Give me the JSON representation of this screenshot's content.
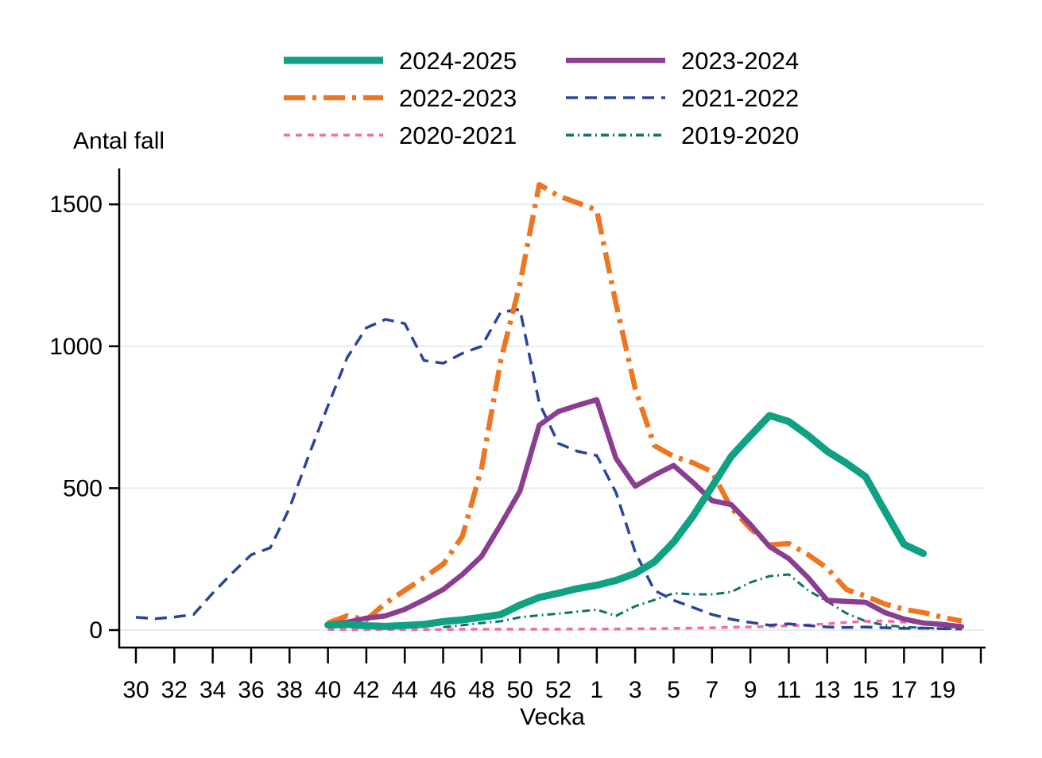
{
  "chart_data": {
    "type": "line",
    "ylabel_title": "Antal fall",
    "xlabel": "Vecka",
    "ylim": [
      0,
      1600
    ],
    "yticks": [
      0,
      500,
      1000,
      1500
    ],
    "grid": "horizontal-light",
    "legend_position": "top-center-two-columns",
    "colors": {
      "axis": "#000000",
      "text": "#000000",
      "grid": "#e4ecf2",
      "background": "#ffffff"
    },
    "weeks": [
      "30",
      "31",
      "32",
      "33",
      "34",
      "35",
      "36",
      "37",
      "38",
      "39",
      "40",
      "41",
      "42",
      "43",
      "44",
      "45",
      "46",
      "47",
      "48",
      "49",
      "50",
      "51",
      "52",
      "53",
      "1",
      "2",
      "3",
      "4",
      "5",
      "6",
      "7",
      "8",
      "9",
      "10",
      "11",
      "12",
      "13",
      "14",
      "15",
      "16",
      "17",
      "18",
      "19",
      "20"
    ],
    "x_tick_labels": [
      "30",
      "32",
      "34",
      "36",
      "38",
      "40",
      "42",
      "44",
      "46",
      "48",
      "50",
      "52",
      "1",
      "3",
      "5",
      "7",
      "9",
      "11",
      "13",
      "15",
      "17",
      "19"
    ],
    "series": [
      {
        "name": "2024-2025",
        "color": "#0ea182",
        "style": "solid",
        "width": 9,
        "values": [
          null,
          null,
          null,
          null,
          null,
          null,
          null,
          null,
          null,
          null,
          18,
          20,
          15,
          13,
          16,
          20,
          30,
          36,
          45,
          55,
          88,
          115,
          130,
          146,
          158,
          175,
          200,
          240,
          310,
          400,
          505,
          612,
          685,
          756,
          735,
          686,
          630,
          588,
          540,
          420,
          302,
          270,
          null,
          null
        ]
      },
      {
        "name": "2023-2024",
        "color": "#8a3e90",
        "style": "solid",
        "width": 6.5,
        "values": [
          null,
          null,
          null,
          null,
          null,
          null,
          null,
          null,
          null,
          null,
          20,
          28,
          42,
          50,
          73,
          106,
          143,
          196,
          260,
          372,
          490,
          722,
          770,
          792,
          812,
          605,
          507,
          546,
          580,
          521,
          456,
          442,
          372,
          294,
          252,
          185,
          105,
          101,
          98,
          62,
          39,
          25,
          20,
          12
        ]
      },
      {
        "name": "2022-2023",
        "color": "#ee7622",
        "style": "dash-dot",
        "width": 6.5,
        "values": [
          null,
          null,
          null,
          null,
          null,
          null,
          null,
          null,
          null,
          null,
          25,
          50,
          36,
          95,
          140,
          185,
          232,
          330,
          570,
          950,
          1220,
          1570,
          1530,
          1505,
          1480,
          1150,
          850,
          650,
          612,
          590,
          558,
          430,
          358,
          300,
          305,
          266,
          218,
          143,
          120,
          92,
          73,
          62,
          45,
          32
        ]
      },
      {
        "name": "2021-2022",
        "color": "#2a4499",
        "style": "dashed",
        "width": 3.5,
        "values": [
          45,
          40,
          46,
          55,
          130,
          200,
          265,
          290,
          430,
          615,
          790,
          960,
          1065,
          1095,
          1080,
          950,
          940,
          975,
          1000,
          1120,
          1130,
          800,
          658,
          630,
          615,
          485,
          275,
          140,
          105,
          80,
          55,
          38,
          27,
          17,
          22,
          16,
          11,
          9,
          11,
          8,
          6,
          7,
          5,
          4
        ]
      },
      {
        "name": "2020-2021",
        "color": "#f16ca8",
        "style": "dotted",
        "width": 3.5,
        "values": [
          null,
          null,
          null,
          null,
          null,
          null,
          null,
          null,
          null,
          null,
          2,
          2,
          2,
          2,
          2,
          2,
          2,
          3,
          3,
          3,
          3,
          3,
          3,
          4,
          4,
          4,
          5,
          5,
          6,
          7,
          8,
          10,
          11,
          13,
          15,
          18,
          22,
          27,
          31,
          32,
          28,
          25,
          20,
          17
        ]
      },
      {
        "name": "2019-2020",
        "color": "#0f7268",
        "style": "dash-dot-fine",
        "width": 3,
        "values": [
          null,
          null,
          null,
          null,
          null,
          null,
          null,
          null,
          null,
          null,
          null,
          null,
          null,
          null,
          null,
          null,
          10,
          17,
          25,
          31,
          45,
          52,
          58,
          65,
          72,
          50,
          84,
          106,
          130,
          126,
          126,
          134,
          168,
          190,
          196,
          140,
          101,
          59,
          31,
          17,
          11,
          8,
          5,
          3
        ]
      }
    ]
  }
}
